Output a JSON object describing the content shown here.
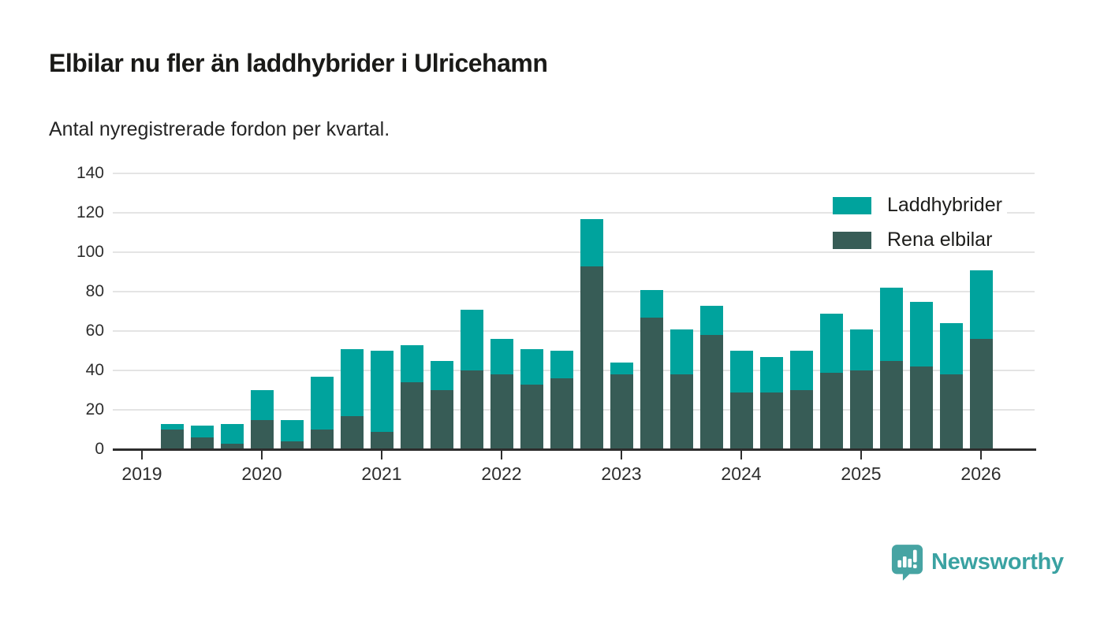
{
  "title": "Elbilar nu fler än laddhybrider i Ulricehamn",
  "subtitle": "Antal nyregistrerade fordon per kvartal.",
  "legend": {
    "items": [
      {
        "label": "Laddhybrider",
        "color": "#00a39d"
      },
      {
        "label": "Rena elbilar",
        "color": "#375c56"
      }
    ]
  },
  "footer": {
    "brand": "Newsworthy",
    "brand_color": "#3aa2a2",
    "badge_color": "#47a4a3"
  },
  "colors": {
    "laddhybrider": "#00a39d",
    "rena_elbilar": "#375c56",
    "grid": "#e4e4e4",
    "axis": "#2d2d2d",
    "text": "#2e2e2e"
  },
  "chart_data": {
    "type": "bar",
    "stacked": true,
    "title": "Elbilar nu fler än laddhybrider i Ulricehamn",
    "subtitle": "Antal nyregistrerade fordon per kvartal.",
    "xlabel": "",
    "ylabel": "Antal nyregistrerade fordon",
    "ylim": [
      0,
      140
    ],
    "yticks": [
      0,
      20,
      40,
      60,
      80,
      100,
      120,
      140
    ],
    "x_year_ticks": [
      "2019",
      "2020",
      "2021",
      "2022",
      "2023",
      "2024",
      "2025",
      "2026"
    ],
    "x": [
      "2019 Q2",
      "2019 Q3",
      "2019 Q4",
      "2020 Q1",
      "2020 Q2",
      "2020 Q3",
      "2020 Q4",
      "2021 Q1",
      "2021 Q2",
      "2021 Q3",
      "2021 Q4",
      "2022 Q1",
      "2022 Q2",
      "2022 Q3",
      "2022 Q4",
      "2023 Q1",
      "2023 Q2",
      "2023 Q3",
      "2023 Q4",
      "2024 Q1",
      "2024 Q2",
      "2024 Q3",
      "2024 Q4",
      "2025 Q1",
      "2025 Q2",
      "2025 Q3",
      "2025 Q4",
      "2026 Q1"
    ],
    "series": [
      {
        "name": "Rena elbilar",
        "color": "#375c56",
        "values": [
          10,
          6,
          3,
          15,
          4,
          10,
          17,
          9,
          34,
          30,
          40,
          38,
          33,
          36,
          93,
          38,
          67,
          38,
          58,
          29,
          29,
          30,
          39,
          40,
          45,
          42,
          38,
          56
        ]
      },
      {
        "name": "Laddhybrider",
        "color": "#00a39d",
        "values": [
          3,
          6,
          10,
          15,
          11,
          27,
          34,
          41,
          19,
          15,
          31,
          18,
          18,
          14,
          24,
          6,
          14,
          23,
          15,
          21,
          18,
          20,
          30,
          21,
          37,
          33,
          26,
          35
        ]
      }
    ],
    "legend_position": "upper right",
    "grid": true
  }
}
